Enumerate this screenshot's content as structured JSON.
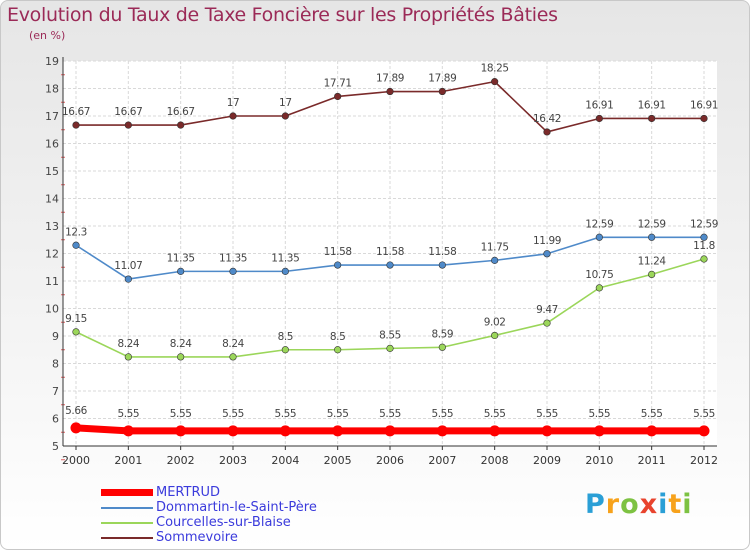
{
  "chart_data": {
    "type": "line",
    "title": "Evolution du Taux de Taxe Foncière sur les Propriétés Bâties",
    "unit_label": "(en %)",
    "x": [
      "2000",
      "2001",
      "2002",
      "2003",
      "2004",
      "2005",
      "2006",
      "2007",
      "2008",
      "2009",
      "2010",
      "2011",
      "2012"
    ],
    "ylim": [
      5,
      19
    ],
    "yticks": [
      "5",
      "6",
      "7",
      "8",
      "9",
      "10",
      "11",
      "12",
      "13",
      "14",
      "15",
      "16",
      "17",
      "18",
      "19"
    ],
    "grid": true,
    "series": [
      {
        "name": "MERTRUD",
        "color": "#ff0000",
        "values": [
          5.66,
          5.55,
          5.55,
          5.55,
          5.55,
          5.55,
          5.55,
          5.55,
          5.55,
          5.55,
          5.55,
          5.55,
          5.55
        ],
        "labels": [
          "5.66",
          "5.55",
          "5.55",
          "5.55",
          "5.55",
          "5.55",
          "5.55",
          "5.55",
          "5.55",
          "5.55",
          "5.55",
          "5.55",
          "5.55"
        ]
      },
      {
        "name": "Dommartin-le-Saint-Père",
        "color": "#4f8ac9",
        "values": [
          12.3,
          11.07,
          11.35,
          11.35,
          11.35,
          11.58,
          11.58,
          11.58,
          11.75,
          11.99,
          12.59,
          12.59,
          12.59
        ],
        "labels": [
          "12.3",
          "11.07",
          "11.35",
          "11.35",
          "11.35",
          "11.58",
          "11.58",
          "11.58",
          "11.75",
          "11.99",
          "12.59",
          "12.59",
          "12.59"
        ]
      },
      {
        "name": "Courcelles-sur-Blaise",
        "color": "#9bd65a",
        "values": [
          9.15,
          8.24,
          8.24,
          8.24,
          8.5,
          8.5,
          8.55,
          8.59,
          9.02,
          9.47,
          10.75,
          11.24,
          11.8
        ],
        "labels": [
          "9.15",
          "8.24",
          "8.24",
          "8.24",
          "8.5",
          "8.5",
          "8.55",
          "8.59",
          "9.02",
          "9.47",
          "10.75",
          "11.24",
          "11.8"
        ]
      },
      {
        "name": "Sommevoire",
        "color": "#7a2a2a",
        "values": [
          16.67,
          16.67,
          16.67,
          17,
          17,
          17.71,
          17.89,
          17.89,
          18.25,
          16.42,
          16.91,
          16.91,
          16.91
        ],
        "labels": [
          "16.67",
          "16.67",
          "16.67",
          "17",
          "17",
          "17.71",
          "17.89",
          "17.89",
          "18.25",
          "16.42",
          "16.91",
          "16.91",
          "16.91"
        ]
      }
    ]
  },
  "logo": {
    "letters": [
      "P",
      "r",
      "o",
      "x",
      "i",
      "t",
      "i"
    ],
    "colors": [
      "#2a9fd6",
      "#f7a21b",
      "#7dc242",
      "#e8432d",
      "#2a9fd6",
      "#f7a21b",
      "#7dc242"
    ]
  }
}
